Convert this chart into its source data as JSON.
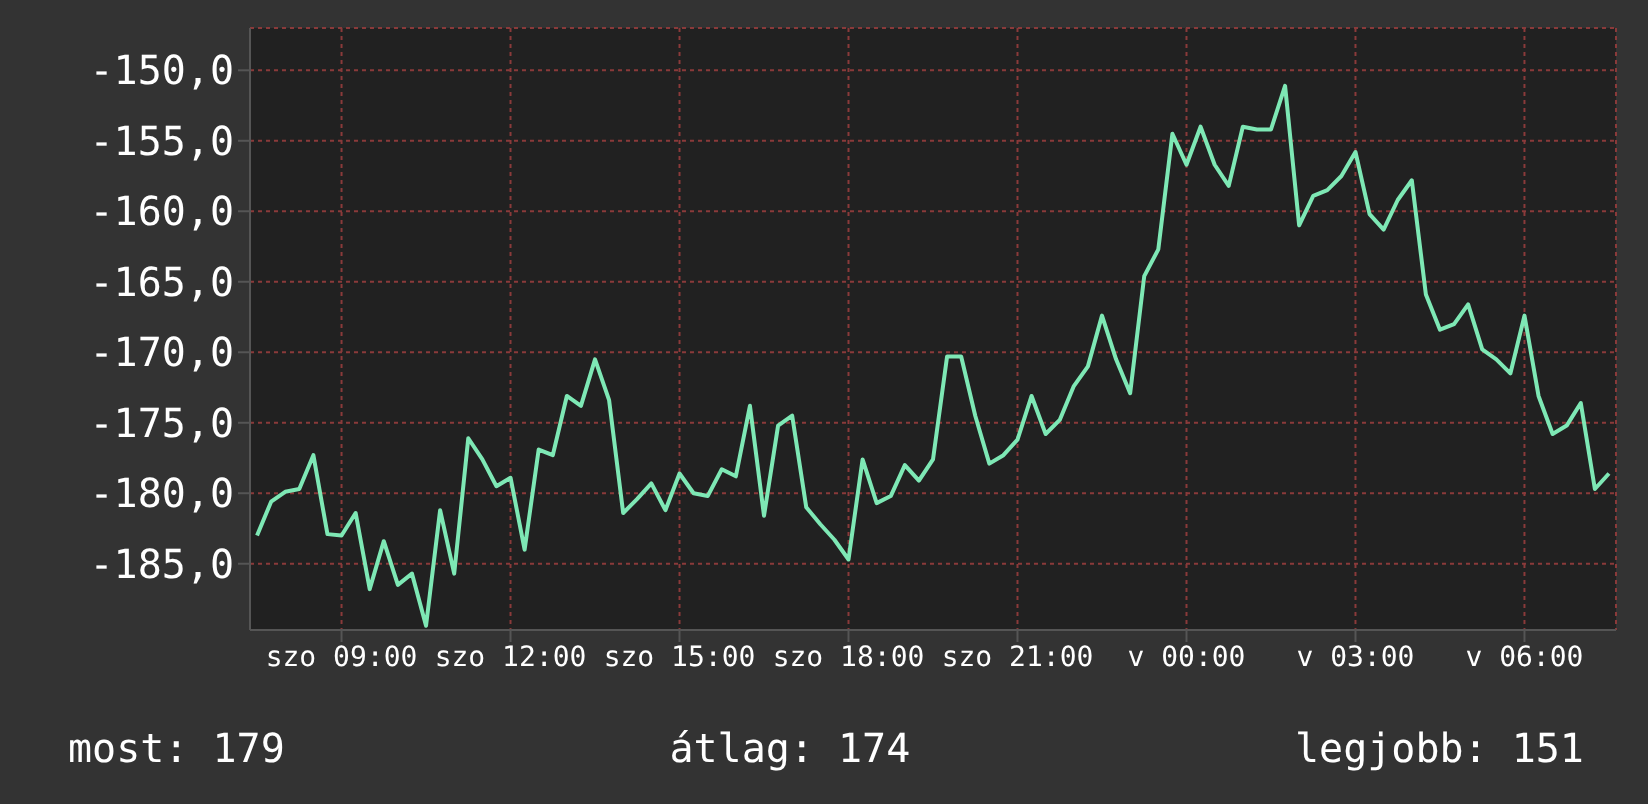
{
  "chart_data": {
    "type": "line",
    "categories": [
      null,
      null,
      null,
      null,
      null,
      null,
      "szo 09:00",
      null,
      null,
      null,
      null,
      null,
      null,
      null,
      null,
      null,
      null,
      null,
      "szo 12:00",
      null,
      null,
      null,
      null,
      null,
      null,
      null,
      null,
      null,
      null,
      null,
      "szo 15:00",
      null,
      null,
      null,
      null,
      null,
      null,
      null,
      null,
      null,
      null,
      null,
      "szo 18:00",
      null,
      null,
      null,
      null,
      null,
      null,
      null,
      null,
      null,
      null,
      null,
      "szo 21:00",
      null,
      null,
      null,
      null,
      null,
      null,
      null,
      null,
      null,
      null,
      null,
      "v 00:00",
      null,
      null,
      null,
      null,
      null,
      null,
      null,
      null,
      null,
      null,
      null,
      "v 03:00",
      null,
      null,
      null,
      null,
      null,
      null,
      null,
      null,
      null,
      null,
      null,
      "v 06:00",
      null,
      null,
      null,
      null,
      null,
      null
    ],
    "series": [
      {
        "color": "#7ee8b5",
        "values": [
          -183.0,
          -180.6,
          -179.9,
          -179.7,
          -177.3,
          -182.9,
          -183.0,
          -181.4,
          -186.8,
          -183.4,
          -186.5,
          -185.7,
          -189.4,
          -181.2,
          -185.7,
          -176.1,
          -177.6,
          -179.5,
          -178.9,
          -184.0,
          -176.9,
          -177.3,
          -173.1,
          -173.8,
          -170.5,
          -173.4,
          -181.4,
          -180.4,
          -179.3,
          -181.2,
          -178.6,
          -180.0,
          -180.2,
          -178.3,
          -178.8,
          -173.8,
          -181.6,
          -175.2,
          -174.5,
          -181.0,
          -182.2,
          -183.3,
          -184.7,
          -177.6,
          -180.7,
          -180.2,
          -178.0,
          -179.1,
          -177.6,
          -170.3,
          -170.3,
          -174.5,
          -177.9,
          -177.3,
          -176.2,
          -173.1,
          -175.8,
          -174.8,
          -172.4,
          -171.0,
          -167.4,
          -170.5,
          -172.9,
          -164.6,
          -162.7,
          -154.5,
          -156.7,
          -154.0,
          -156.7,
          -158.2,
          -154.0,
          -154.2,
          -154.2,
          -151.1,
          -161.0,
          -158.9,
          -158.5,
          -157.5,
          -155.8,
          -160.2,
          -161.3,
          -159.2,
          -157.8,
          -165.9,
          -168.4,
          -168.0,
          -166.6,
          -169.8,
          -170.5,
          -171.5,
          -167.4,
          -173.1,
          -175.8,
          -175.2,
          -173.6,
          -179.7,
          -178.6
        ]
      }
    ],
    "ylim": [
      -189.7,
      -147
    ],
    "yticks": [
      {
        "value": -185,
        "label": "-185,0"
      },
      {
        "value": -180,
        "label": "-180,0"
      },
      {
        "value": -175,
        "label": "-175,0"
      },
      {
        "value": -170,
        "label": "-170,0"
      },
      {
        "value": -165,
        "label": "-165,0"
      },
      {
        "value": -160,
        "label": "-160,0"
      },
      {
        "value": -155,
        "label": "-155,0"
      },
      {
        "value": -150,
        "label": "-150,0"
      }
    ],
    "grid": true,
    "annotations": [
      "most: 179",
      "átlag: 174",
      "legjobb: 151"
    ]
  }
}
